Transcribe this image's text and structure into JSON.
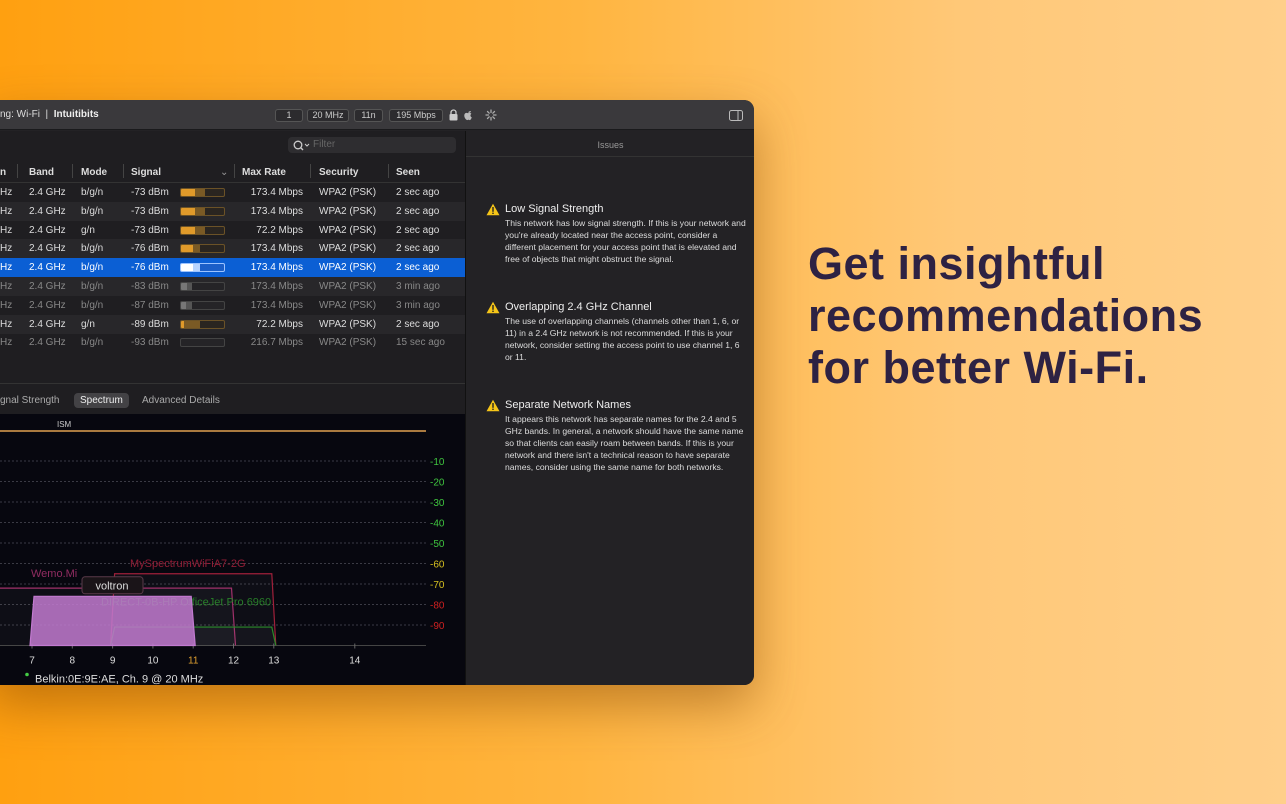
{
  "toolbar": {
    "title_prefix": "ng: Wi-Fi  |  ",
    "title_network": "Intuitibits",
    "chips": [
      "1",
      "20 MHz",
      "11n",
      "195 Mbps"
    ],
    "icons": [
      "lock-icon",
      "apple-icon",
      "spinner-icon",
      "sidebar-toggle-icon"
    ]
  },
  "filter": {
    "placeholder": "Filter"
  },
  "table": {
    "headers": [
      "n",
      "Band",
      "Mode",
      "Signal",
      "Max Rate",
      "Security",
      "Seen"
    ],
    "rows": [
      {
        "c0": "Hz",
        "band": "2.4 GHz",
        "mode": "b/g/n",
        "signal": "-73 dBm",
        "level": 0.33,
        "level2": 0.55,
        "rate": "173.4 Mbps",
        "security": "WPA2 (PSK)",
        "seen": "2 sec ago",
        "state": "normal"
      },
      {
        "c0": "Hz",
        "band": "2.4 GHz",
        "mode": "b/g/n",
        "signal": "-73 dBm",
        "level": 0.33,
        "level2": 0.55,
        "rate": "173.4 Mbps",
        "security": "WPA2 (PSK)",
        "seen": "2 sec ago",
        "state": "normal"
      },
      {
        "c0": "Hz",
        "band": "2.4 GHz",
        "mode": "g/n",
        "signal": "-73 dBm",
        "level": 0.33,
        "level2": 0.55,
        "rate": "72.2 Mbps",
        "security": "WPA2 (PSK)",
        "seen": "2 sec ago",
        "state": "normal"
      },
      {
        "c0": "Hz",
        "band": "2.4 GHz",
        "mode": "b/g/n",
        "signal": "-76 dBm",
        "level": 0.28,
        "level2": 0.45,
        "rate": "173.4 Mbps",
        "security": "WPA2 (PSK)",
        "seen": "2 sec ago",
        "state": "normal"
      },
      {
        "c0": "Hz",
        "band": "2.4 GHz",
        "mode": "b/g/n",
        "signal": "-76 dBm",
        "level": 0.28,
        "level2": 0.45,
        "rate": "173.4 Mbps",
        "security": "WPA2 (PSK)",
        "seen": "2 sec ago",
        "state": "selected"
      },
      {
        "c0": "Hz",
        "band": "2.4 GHz",
        "mode": "b/g/n",
        "signal": "-83 dBm",
        "level": 0.15,
        "level2": 0.25,
        "rate": "173.4 Mbps",
        "security": "WPA2 (PSK)",
        "seen": "3 min ago",
        "state": "stale"
      },
      {
        "c0": "Hz",
        "band": "2.4 GHz",
        "mode": "b/g/n",
        "signal": "-87 dBm",
        "level": 0.12,
        "level2": 0.25,
        "rate": "173.4 Mbps",
        "security": "WPA2 (PSK)",
        "seen": "3 min ago",
        "state": "stale"
      },
      {
        "c0": "Hz",
        "band": "2.4 GHz",
        "mode": "g/n",
        "signal": "-89 dBm",
        "level": 0.07,
        "level2": 0.45,
        "rate": "72.2 Mbps",
        "security": "WPA2 (PSK)",
        "seen": "2 sec ago",
        "state": "normal"
      },
      {
        "c0": "Hz",
        "band": "2.4 GHz",
        "mode": "b/g/n",
        "signal": "-93 dBm",
        "level": 0,
        "level2": 0,
        "rate": "216.7 Mbps",
        "security": "WPA2 (PSK)",
        "seen": "15 sec ago",
        "state": "stale"
      }
    ]
  },
  "tabs": [
    {
      "label": "gnal Strength",
      "active": false
    },
    {
      "label": "Spectrum",
      "active": true
    },
    {
      "label": "Advanced Details",
      "active": false
    }
  ],
  "chart_data": {
    "type": "area",
    "band_label": "ISM",
    "x_ticks": [
      7,
      8,
      9,
      10,
      11,
      12,
      13,
      14
    ],
    "highlight_tick": 11,
    "y_ticks": [
      -10,
      -20,
      -30,
      -40,
      -50,
      -60,
      -70,
      -80,
      -90
    ],
    "y_tick_colors": {
      "-10": "#3fc43f",
      "-20": "#3fc43f",
      "-30": "#3fc43f",
      "-40": "#3fc43f",
      "-50": "#3fc43f",
      "-60": "#d6c020",
      "-70": "#d6c020",
      "-80": "#d02020",
      "-90": "#d02020"
    },
    "grid": true,
    "networks": [
      {
        "name": "MySpectrumWiFiA7-2G",
        "span": [
          9,
          13
        ],
        "signal": -65,
        "color": "#a0203a",
        "filled": false
      },
      {
        "name": "Wemo.Mi",
        "span": [
          6,
          12
        ],
        "signal": -72,
        "color": "#a0306a",
        "filled": false
      },
      {
        "name": "DIRECT-0B-HP OfficeJet Pro 6960",
        "span": [
          9,
          13
        ],
        "signal": -91,
        "color": "#2a8a2a",
        "filled": false
      },
      {
        "name": "voltron",
        "span": [
          7,
          11
        ],
        "signal": -76,
        "color": "#c27ad0",
        "filled": true
      }
    ],
    "tooltip": "voltron",
    "legend": "Belkin:0E:9E:AE, Ch. 9 @ 20 MHz"
  },
  "issues": {
    "title": "Issues",
    "items": [
      {
        "title": "Low Signal Strength",
        "body": "This network has low signal strength. If this is your network and you're already located near the access point, consider a different placement for your access point that is elevated and free of objects that might obstruct the signal."
      },
      {
        "title": "Overlapping 2.4 GHz Channel",
        "body": "The use of overlapping channels (channels other than 1, 6, or 11) in a 2.4 GHz network is not recommended. If this is your network, consider setting the access point to use channel 1, 6 or 11."
      },
      {
        "title": "Separate Network Names",
        "body": "It appears this network has separate names for the 2.4 and 5 GHz bands. In general, a network should have the same name so that clients can easily roam between bands. If this is your network and there isn't a technical reason to have separate names, consider using the same name for both networks."
      }
    ]
  },
  "promo": {
    "lines": [
      "Get insightful",
      "recommendations",
      "for better Wi-Fi."
    ]
  },
  "colors": {
    "accent": "#0b5fd4",
    "warning": "#f5c518",
    "signal_bar": "#e09a2a",
    "promo_text": "#2e2243"
  }
}
